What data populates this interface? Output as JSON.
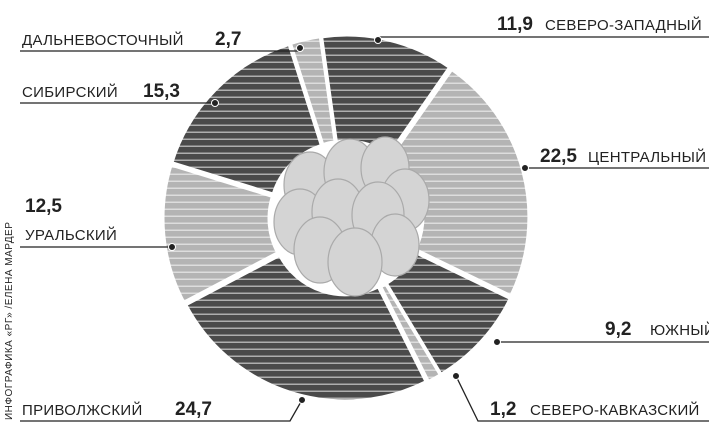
{
  "credit": "ИНФОГРАФИКА «РГ» /ЕЛЕНА МАРДЕР",
  "chart_data": {
    "type": "pie",
    "categories": [
      "СЕВЕРО-ЗАПАДНЫЙ",
      "ЦЕНТРАЛЬНЫЙ",
      "ЮЖНЫЙ",
      "СЕВЕРО-КАВКАЗСКИЙ",
      "ПРИВОЛЖСКИЙ",
      "УРАЛЬСКИЙ",
      "СИБИРСКИЙ",
      "ДАЛЬНЕВОСТОЧНЫЙ"
    ],
    "values": [
      11.9,
      22.5,
      9.2,
      1.2,
      24.7,
      12.5,
      15.3,
      2.7
    ],
    "value_labels": [
      "11,9",
      "22,5",
      "9,2",
      "1,2",
      "24,7",
      "12,5",
      "15,3",
      "2,7"
    ],
    "colors": [
      "#4a4a4a",
      "#b4b4b4",
      "#4a4a4a",
      "#b4b4b4",
      "#4a4a4a",
      "#b4b4b4",
      "#4a4a4a",
      "#b4b4b4"
    ]
  }
}
